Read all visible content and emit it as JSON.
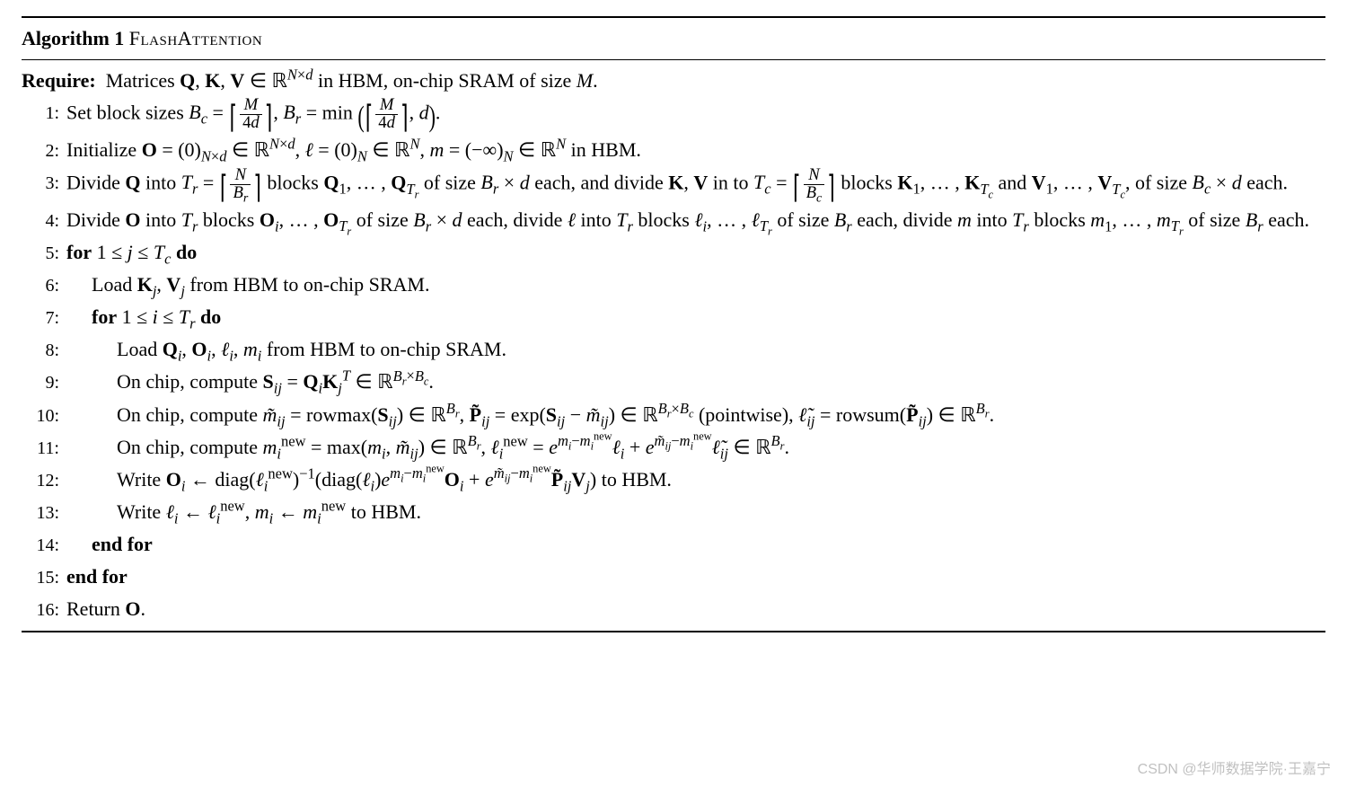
{
  "algorithm": {
    "label": "Algorithm 1",
    "name": "FlashAttention",
    "require_label": "Require:",
    "watermark": "CSDN @华师数据学院·王嘉宁",
    "typography": {
      "font_family": "Times New Roman",
      "base_fontsize_pt": 22,
      "rule_color": "#000000",
      "text_color": "#000000",
      "background_color": "#ffffff",
      "watermark_color": "rgba(0,0,0,0.25)"
    },
    "steps": [
      {
        "n": 1,
        "indent": 0,
        "plain": "Set block sizes B_c = ⌈M/(4d)⌉, B_r = min(⌈M/(4d)⌉, d)."
      },
      {
        "n": 2,
        "indent": 0,
        "plain": "Initialize O = (0)_{N×d} ∈ ℝ^{N×d}, ℓ = (0)_N ∈ ℝ^N, m = (−∞)_N ∈ ℝ^N in HBM."
      },
      {
        "n": 3,
        "indent": 0,
        "plain": "Divide Q into T_r = ⌈N/B_r⌉ blocks Q_1,…,Q_{T_r} of size B_r × d each, and divide K, V in to T_c = ⌈N/B_c⌉ blocks K_1,…,K_{T_c} and V_1,…,V_{T_c}, of size B_c × d each."
      },
      {
        "n": 4,
        "indent": 0,
        "plain": "Divide O into T_r blocks O_i,…,O_{T_r} of size B_r × d each, divide ℓ into T_r blocks ℓ_i,…,ℓ_{T_r} of size B_r each, divide m into T_r blocks m_1,…,m_{T_r} of size B_r each."
      },
      {
        "n": 5,
        "indent": 0,
        "plain": "for 1 ≤ j ≤ T_c do",
        "keyword": "for"
      },
      {
        "n": 6,
        "indent": 1,
        "plain": "Load K_j, V_j from HBM to on-chip SRAM."
      },
      {
        "n": 7,
        "indent": 1,
        "plain": "for 1 ≤ i ≤ T_r do",
        "keyword": "for"
      },
      {
        "n": 8,
        "indent": 2,
        "plain": "Load Q_i, O_i, ℓ_i, m_i from HBM to on-chip SRAM."
      },
      {
        "n": 9,
        "indent": 2,
        "plain": "On chip, compute S_{ij} = Q_i K_j^T ∈ ℝ^{B_r × B_c}."
      },
      {
        "n": 10,
        "indent": 2,
        "plain": "On chip, compute m̃_{ij} = rowmax(S_{ij}) ∈ ℝ^{B_r}, P̃_{ij} = exp(S_{ij} − m̃_{ij}) ∈ ℝ^{B_r × B_c} (pointwise), ℓ̃_{ij} = rowsum(P̃_{ij}) ∈ ℝ^{B_r}."
      },
      {
        "n": 11,
        "indent": 2,
        "plain": "On chip, compute m_i^{new} = max(m_i, m̃_{ij}) ∈ ℝ^{B_r}, ℓ_i^{new} = e^{m_i − m_i^{new}} ℓ_i + e^{m̃_{ij} − m_i^{new}} ℓ̃_{ij} ∈ ℝ^{B_r}."
      },
      {
        "n": 12,
        "indent": 2,
        "plain": "Write O_i ← diag(ℓ_i^{new})^{-1}(diag(ℓ_i) e^{m_i − m_i^{new}} O_i + e^{m̃_{ij} − m_i^{new}} P̃_{ij} V_j) to HBM."
      },
      {
        "n": 13,
        "indent": 2,
        "plain": "Write ℓ_i ← ℓ_i^{new}, m_i ← m_i^{new} to HBM."
      },
      {
        "n": 14,
        "indent": 1,
        "plain": "end for",
        "keyword": "end for"
      },
      {
        "n": 15,
        "indent": 0,
        "plain": "end for",
        "keyword": "end for"
      },
      {
        "n": 16,
        "indent": 0,
        "plain": "Return O."
      }
    ]
  }
}
